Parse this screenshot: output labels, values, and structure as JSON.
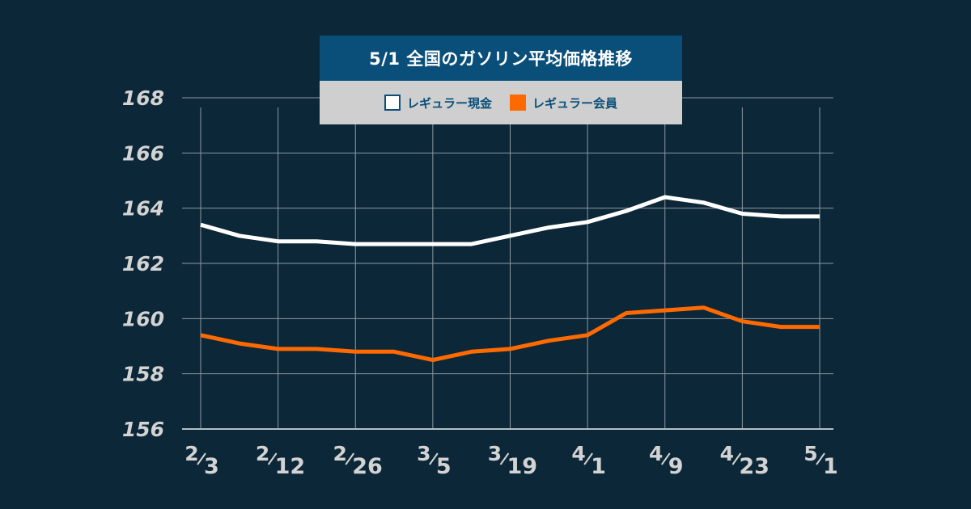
{
  "chart_data": {
    "type": "line",
    "title": "5/1  全国のガソリン平均価格推移",
    "xlabel": "",
    "ylabel": "",
    "ylim": [
      156,
      168
    ],
    "yticks": [
      156,
      158,
      160,
      162,
      164,
      166,
      168
    ],
    "x_tick_labels": [
      {
        "month": "2",
        "day": "3"
      },
      {
        "month": "2",
        "day": "12"
      },
      {
        "month": "2",
        "day": "26"
      },
      {
        "month": "3",
        "day": "5"
      },
      {
        "month": "3",
        "day": "19"
      },
      {
        "month": "4",
        "day": "1"
      },
      {
        "month": "4",
        "day": "9"
      },
      {
        "month": "4",
        "day": "23"
      },
      {
        "month": "5",
        "day": "1"
      }
    ],
    "grid": true,
    "legend_position": "top-center",
    "series": [
      {
        "name": "レギュラー現金",
        "color": "#ffffff",
        "values": [
          163.4,
          163.0,
          162.8,
          162.8,
          162.7,
          162.7,
          162.7,
          162.7,
          163.0,
          163.3,
          163.5,
          163.9,
          164.4,
          164.2,
          163.8,
          163.7,
          163.7
        ]
      },
      {
        "name": "レギュラー会員",
        "color": "#ff6a00",
        "values": [
          159.4,
          159.1,
          158.9,
          158.9,
          158.8,
          158.8,
          158.5,
          158.8,
          158.9,
          159.2,
          159.4,
          160.2,
          160.3,
          160.4,
          159.9,
          159.7,
          159.7
        ]
      }
    ]
  }
}
